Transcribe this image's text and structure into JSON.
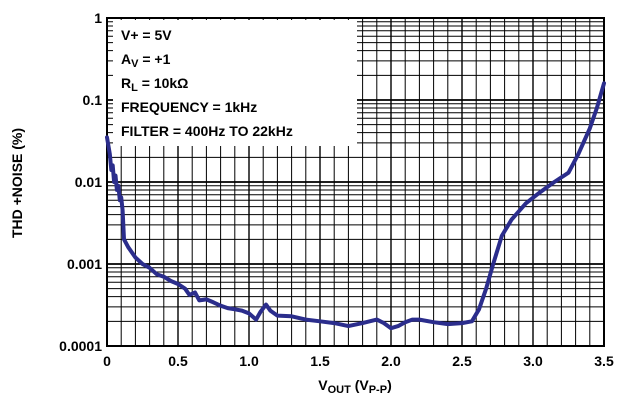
{
  "chart_data": {
    "type": "line",
    "xlabel": "V",
    "xlabel_sub": "OUT",
    "xlabel_unit_open": " (V",
    "xlabel_unit_sub": "P-P",
    "xlabel_unit_close": ")",
    "ylabel": "THD +NOISE (%)",
    "xlim": [
      0,
      3.5
    ],
    "ylim": [
      0.0001,
      1
    ],
    "yscale": "log",
    "grid": true,
    "x_ticks": [
      0,
      0.5,
      1.0,
      1.5,
      2.0,
      2.5,
      3.0,
      3.5
    ],
    "x_tick_labels": [
      "0",
      "0.5",
      "1.0",
      "1.5",
      "2.0",
      "2.5",
      "3.0",
      "3.5"
    ],
    "y_ticks": [
      0.0001,
      0.001,
      0.01,
      0.1,
      1
    ],
    "y_tick_labels": [
      "0.0001",
      "0.001",
      "0.01",
      "0.1",
      "1"
    ],
    "conditions": {
      "supply": "V+ = 5V",
      "gain_main": "A",
      "gain_sub": "V",
      "gain_value": " = +1",
      "load_main": "R",
      "load_sub": "L",
      "load_value": " = 10kΩ",
      "frequency": "FREQUENCY = 1kHz",
      "filter": "FILTER = 400Hz TO 22kHz"
    },
    "series": [
      {
        "color": "#2b2d8c",
        "points": [
          [
            0.0,
            0.035
          ],
          [
            0.02,
            0.022
          ],
          [
            0.03,
            0.014
          ],
          [
            0.04,
            0.016
          ],
          [
            0.05,
            0.01
          ],
          [
            0.06,
            0.012
          ],
          [
            0.07,
            0.008
          ],
          [
            0.08,
            0.009
          ],
          [
            0.09,
            0.006
          ],
          [
            0.1,
            0.0065
          ],
          [
            0.11,
            0.0045
          ],
          [
            0.12,
            0.002
          ],
          [
            0.15,
            0.0016
          ],
          [
            0.2,
            0.0012
          ],
          [
            0.25,
            0.001
          ],
          [
            0.3,
            0.0009
          ],
          [
            0.35,
            0.00075
          ],
          [
            0.4,
            0.0007
          ],
          [
            0.45,
            0.00062
          ],
          [
            0.5,
            0.00057
          ],
          [
            0.55,
            0.0005
          ],
          [
            0.58,
            0.00042
          ],
          [
            0.62,
            0.00045
          ],
          [
            0.65,
            0.00036
          ],
          [
            0.7,
            0.00037
          ],
          [
            0.75,
            0.00034
          ],
          [
            0.8,
            0.00031
          ],
          [
            0.85,
            0.00029
          ],
          [
            0.9,
            0.00028
          ],
          [
            0.95,
            0.00027
          ],
          [
            1.0,
            0.00025
          ],
          [
            1.05,
            0.00021
          ],
          [
            1.08,
            0.00026
          ],
          [
            1.12,
            0.00032
          ],
          [
            1.15,
            0.00027
          ],
          [
            1.2,
            0.000235
          ],
          [
            1.3,
            0.00023
          ],
          [
            1.4,
            0.00021
          ],
          [
            1.5,
            0.0002
          ],
          [
            1.6,
            0.00019
          ],
          [
            1.7,
            0.000175
          ],
          [
            1.8,
            0.00019
          ],
          [
            1.9,
            0.00021
          ],
          [
            1.95,
            0.00019
          ],
          [
            2.0,
            0.000165
          ],
          [
            2.05,
            0.000175
          ],
          [
            2.1,
            0.000195
          ],
          [
            2.15,
            0.00021
          ],
          [
            2.2,
            0.00021
          ],
          [
            2.3,
            0.000195
          ],
          [
            2.4,
            0.000185
          ],
          [
            2.5,
            0.00019
          ],
          [
            2.57,
            0.0002
          ],
          [
            2.62,
            0.00028
          ],
          [
            2.67,
            0.0005
          ],
          [
            2.72,
            0.001
          ],
          [
            2.78,
            0.0022
          ],
          [
            2.85,
            0.0035
          ],
          [
            2.95,
            0.0055
          ],
          [
            3.05,
            0.0075
          ],
          [
            3.15,
            0.01
          ],
          [
            3.25,
            0.013
          ],
          [
            3.32,
            0.022
          ],
          [
            3.4,
            0.045
          ],
          [
            3.45,
            0.08
          ],
          [
            3.5,
            0.16
          ]
        ]
      }
    ]
  }
}
